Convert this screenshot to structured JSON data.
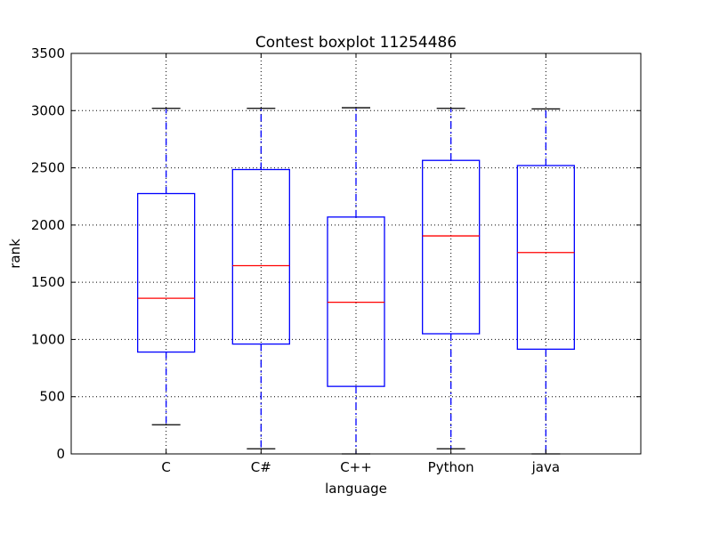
{
  "chart_data": {
    "type": "boxplot",
    "title": "Contest boxplot 11254486",
    "xlabel": "language",
    "ylabel": "rank",
    "ylim": [
      0,
      3500
    ],
    "yticks": [
      0,
      500,
      1000,
      1500,
      2000,
      2500,
      3000,
      3500
    ],
    "grid": true,
    "categories": [
      "C",
      "C#",
      "C++",
      "Python",
      "java"
    ],
    "boxes": [
      {
        "category": "C",
        "whisker_low": 255,
        "q1": 890,
        "median": 1360,
        "q3": 2275,
        "whisker_high": 3020
      },
      {
        "category": "C#",
        "whisker_low": 45,
        "q1": 960,
        "median": 1645,
        "q3": 2485,
        "whisker_high": 3020
      },
      {
        "category": "C++",
        "whisker_low": 0,
        "q1": 590,
        "median": 1325,
        "q3": 2070,
        "whisker_high": 3025
      },
      {
        "category": "Python",
        "whisker_low": 45,
        "q1": 1050,
        "median": 1905,
        "q3": 2565,
        "whisker_high": 3020
      },
      {
        "category": "java",
        "whisker_low": 0,
        "q1": 915,
        "median": 1760,
        "q3": 2520,
        "whisker_high": 3015
      }
    ],
    "colors": {
      "box": "#0000ff",
      "median": "#ff0000",
      "cap": "#000000",
      "grid": "#000000",
      "axes": "#000000"
    }
  }
}
